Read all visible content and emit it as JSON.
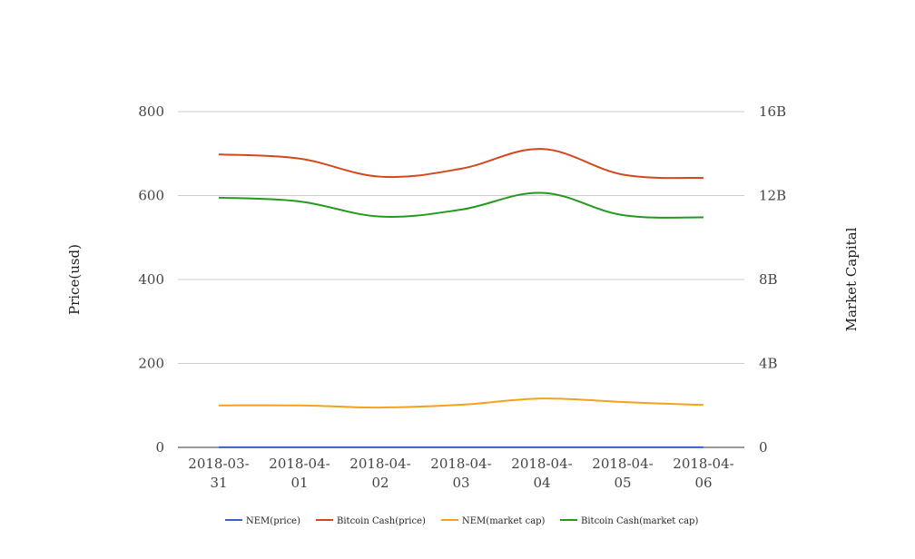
{
  "chart_data": {
    "type": "line",
    "categories": [
      [
        "2018-03-",
        "31"
      ],
      [
        "2018-04-",
        "01"
      ],
      [
        "2018-04-",
        "02"
      ],
      [
        "2018-04-",
        "03"
      ],
      [
        "2018-04-",
        "04"
      ],
      [
        "2018-04-",
        "05"
      ],
      [
        "2018-04-",
        "06"
      ]
    ],
    "ylabel_left": "Price(usd)",
    "ylabel_right": "Market Capital",
    "ylim_left": [
      0,
      800
    ],
    "ylim_right": [
      0,
      16000000000
    ],
    "left_ticks": [
      "0",
      "200",
      "400",
      "600",
      "800"
    ],
    "right_ticks": [
      "0",
      "4B",
      "8B",
      "12B",
      "16B"
    ],
    "grid": true,
    "legend_position": "bottom",
    "series": [
      {
        "name": "NEM(price)",
        "axis": "left",
        "color": "#3b5fc4",
        "values": [
          0.3,
          0.3,
          0.28,
          0.29,
          0.3,
          0.3,
          0.29
        ]
      },
      {
        "name": "Bitcoin Cash(price)",
        "axis": "left",
        "color": "#d4481e",
        "values": [
          698,
          688,
          645,
          664,
          711,
          650,
          642
        ]
      },
      {
        "name": "NEM(market cap)",
        "axis": "right",
        "color": "#f4a21c",
        "values": [
          2000000000,
          2000000000,
          1900000000,
          2030000000,
          2330000000,
          2160000000,
          2020000000
        ]
      },
      {
        "name": "Bitcoin Cash(market cap)",
        "axis": "right",
        "color": "#239a1f",
        "values": [
          11900000000,
          11720000000,
          11000000000,
          11330000000,
          12130000000,
          11070000000,
          10960000000
        ]
      }
    ]
  }
}
